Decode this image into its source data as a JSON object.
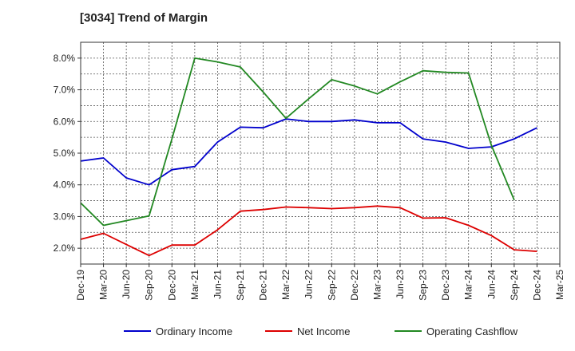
{
  "chart_data": {
    "type": "line",
    "title": "[3034]  Trend of Margin",
    "xlabel": "",
    "ylabel": "",
    "ylim": [
      1.5,
      8.5
    ],
    "grid": true,
    "legend_position": "bottom",
    "categories": [
      "Dec-19",
      "Mar-20",
      "Jun-20",
      "Sep-20",
      "Dec-20",
      "Mar-21",
      "Jun-21",
      "Sep-21",
      "Dec-21",
      "Mar-22",
      "Jun-22",
      "Sep-22",
      "Dec-22",
      "Mar-23",
      "Jun-23",
      "Sep-23",
      "Dec-23",
      "Mar-24",
      "Jun-24",
      "Sep-24",
      "Dec-24",
      "Mar-25"
    ],
    "y_ticks": [
      {
        "value": 2.0,
        "label": "2.0%"
      },
      {
        "value": 3.0,
        "label": "3.0%"
      },
      {
        "value": 4.0,
        "label": "4.0%"
      },
      {
        "value": 5.0,
        "label": "5.0%"
      },
      {
        "value": 6.0,
        "label": "6.0%"
      },
      {
        "value": 7.0,
        "label": "7.0%"
      },
      {
        "value": 8.0,
        "label": "8.0%"
      }
    ],
    "series": [
      {
        "name": "Ordinary Income",
        "color": "#0000cc",
        "values": [
          4.75,
          4.85,
          4.22,
          4.0,
          4.48,
          4.58,
          5.35,
          5.82,
          5.8,
          6.08,
          6.0,
          6.0,
          6.05,
          5.96,
          5.96,
          5.45,
          5.35,
          5.15,
          5.2,
          5.45,
          5.8,
          null
        ]
      },
      {
        "name": "Net Income",
        "color": "#dd0000",
        "values": [
          2.28,
          2.47,
          2.12,
          1.77,
          2.1,
          2.1,
          2.58,
          3.17,
          3.22,
          3.3,
          3.28,
          3.25,
          3.28,
          3.33,
          3.28,
          2.95,
          2.96,
          2.72,
          2.4,
          1.95,
          1.9,
          null
        ]
      },
      {
        "name": "Operating Cashflow",
        "color": "#228822",
        "values": [
          3.43,
          2.72,
          2.87,
          3.02,
          5.45,
          8.0,
          7.88,
          7.72,
          6.93,
          6.1,
          6.72,
          7.32,
          7.12,
          6.87,
          7.25,
          7.6,
          7.55,
          7.53,
          5.25,
          3.52,
          null,
          null
        ]
      }
    ]
  }
}
